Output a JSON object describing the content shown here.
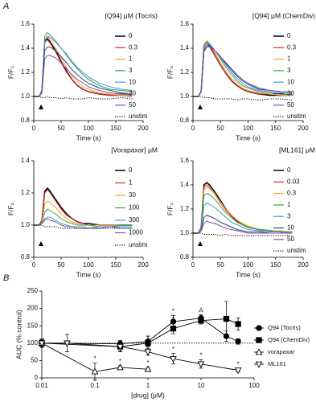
{
  "panels": {
    "a": "A",
    "b": "B"
  },
  "chart_data": [
    {
      "type": "line",
      "title": "[Q94] μM (Tocris)",
      "xlabel": "Time (s)",
      "ylabel": "F/F₀",
      "x": [
        0,
        10,
        15,
        20,
        25,
        30,
        40,
        50,
        60,
        70,
        80,
        90,
        100,
        120,
        140,
        160,
        180
      ],
      "xlim": [
        0,
        200
      ],
      "xticks": [
        0,
        50,
        100,
        150,
        200
      ],
      "ylim": [
        0.8,
        1.6
      ],
      "yticks": [
        0.8,
        {
          "value": 1,
          "label": "1.0"
        },
        1.2,
        1.4,
        1.6
      ],
      "series": [
        {
          "name": "0",
          "color": "#000000",
          "values": [
            1.0,
            1.0,
            1.05,
            1.46,
            1.48,
            1.45,
            1.38,
            1.29,
            1.21,
            1.14,
            1.09,
            1.06,
            1.04,
            1.02,
            1.01,
            1.01,
            1.01
          ]
        },
        {
          "name": "0.3",
          "color": "#e3262b",
          "values": [
            1.0,
            1.0,
            1.05,
            1.45,
            1.47,
            1.44,
            1.37,
            1.28,
            1.2,
            1.14,
            1.09,
            1.06,
            1.04,
            1.02,
            1.01,
            1.01,
            1.0
          ]
        },
        {
          "name": "1",
          "color": "#f5a623",
          "values": [
            1.0,
            1.0,
            1.05,
            1.48,
            1.5,
            1.47,
            1.4,
            1.32,
            1.24,
            1.17,
            1.12,
            1.08,
            1.06,
            1.03,
            1.02,
            1.01,
            1.01
          ]
        },
        {
          "name": "3",
          "color": "#3aa14a",
          "values": [
            1.0,
            1.0,
            1.05,
            1.5,
            1.53,
            1.51,
            1.46,
            1.4,
            1.34,
            1.28,
            1.23,
            1.18,
            1.14,
            1.09,
            1.06,
            1.05,
            1.04
          ]
        },
        {
          "name": "10",
          "color": "#3b9bd6",
          "values": [
            1.0,
            1.0,
            1.04,
            1.46,
            1.5,
            1.49,
            1.45,
            1.4,
            1.35,
            1.29,
            1.24,
            1.2,
            1.16,
            1.11,
            1.08,
            1.06,
            1.05
          ]
        },
        {
          "name": "30",
          "color": "#2b3a8f",
          "values": [
            1.0,
            1.0,
            1.04,
            1.38,
            1.41,
            1.41,
            1.38,
            1.33,
            1.28,
            1.22,
            1.18,
            1.14,
            1.11,
            1.07,
            1.05,
            1.03,
            1.02
          ]
        },
        {
          "name": "50",
          "color": "#8b4fa6",
          "values": [
            1.0,
            1.0,
            1.03,
            1.31,
            1.34,
            1.34,
            1.32,
            1.28,
            1.23,
            1.18,
            1.14,
            1.11,
            1.08,
            1.05,
            1.03,
            1.02,
            1.02
          ]
        },
        {
          "name": "unstim",
          "color": "#000000",
          "dash": "dotted",
          "values": [
            1.0,
            1.0,
            0.99,
            0.99,
            1.0,
            0.99,
            0.99,
            0.98,
            0.99,
            0.98,
            0.98,
            0.98,
            0.99,
            0.98,
            0.98,
            0.99,
            0.98
          ]
        }
      ]
    },
    {
      "type": "line",
      "title": "[Q94] μM (ChemDiv)",
      "xlabel": "Time (s)",
      "ylabel": "F/F₀",
      "x": [
        0,
        10,
        15,
        20,
        25,
        30,
        40,
        50,
        60,
        70,
        80,
        90,
        100,
        120,
        140,
        160,
        180
      ],
      "xlim": [
        0,
        200
      ],
      "xticks": [
        0,
        50,
        100,
        150,
        200
      ],
      "ylim": [
        0.8,
        1.6
      ],
      "yticks": [
        0.8,
        {
          "value": 1,
          "label": "1.0"
        },
        1.2,
        1.4,
        1.6
      ],
      "series": [
        {
          "name": "0",
          "color": "#000000",
          "values": [
            1.0,
            1.0,
            1.05,
            1.42,
            1.45,
            1.42,
            1.34,
            1.26,
            1.19,
            1.13,
            1.09,
            1.06,
            1.04,
            1.02,
            1.01,
            1.01,
            1.01
          ]
        },
        {
          "name": "0.3",
          "color": "#e3262b",
          "values": [
            1.0,
            1.0,
            1.05,
            1.41,
            1.44,
            1.41,
            1.34,
            1.26,
            1.19,
            1.13,
            1.09,
            1.06,
            1.04,
            1.02,
            1.02,
            1.01,
            1.01
          ]
        },
        {
          "name": "1",
          "color": "#f5a623",
          "values": [
            1.0,
            1.0,
            1.05,
            1.42,
            1.45,
            1.43,
            1.36,
            1.28,
            1.21,
            1.15,
            1.11,
            1.07,
            1.05,
            1.03,
            1.02,
            1.01,
            1.01
          ]
        },
        {
          "name": "3",
          "color": "#3aa14a",
          "values": [
            1.0,
            1.0,
            1.05,
            1.43,
            1.46,
            1.44,
            1.38,
            1.31,
            1.24,
            1.18,
            1.13,
            1.09,
            1.07,
            1.04,
            1.03,
            1.02,
            1.02
          ]
        },
        {
          "name": "10",
          "color": "#3b9bd6",
          "values": [
            1.0,
            1.0,
            1.04,
            1.4,
            1.44,
            1.43,
            1.38,
            1.32,
            1.26,
            1.2,
            1.15,
            1.11,
            1.08,
            1.05,
            1.04,
            1.03,
            1.03
          ]
        },
        {
          "name": "30",
          "color": "#2b3a8f",
          "values": [
            1.0,
            1.0,
            1.04,
            1.38,
            1.42,
            1.42,
            1.38,
            1.33,
            1.27,
            1.22,
            1.17,
            1.13,
            1.1,
            1.06,
            1.05,
            1.04,
            1.04
          ]
        },
        {
          "name": "50",
          "color": "#8b4fa6",
          "values": [
            1.0,
            1.0,
            1.04,
            1.37,
            1.41,
            1.41,
            1.38,
            1.33,
            1.28,
            1.23,
            1.18,
            1.14,
            1.11,
            1.07,
            1.05,
            1.04,
            1.04
          ]
        },
        {
          "name": "unstim",
          "color": "#000000",
          "dash": "dotted",
          "values": [
            1.0,
            1.0,
            1.0,
            0.99,
            0.99,
            0.99,
            0.98,
            0.98,
            0.98,
            0.98,
            0.97,
            0.98,
            0.98,
            0.97,
            0.98,
            0.98,
            0.97
          ]
        }
      ]
    },
    {
      "type": "line",
      "title": "[Vorapaxar] μM",
      "xlabel": "Time (s)",
      "ylabel": "F/F₀",
      "x": [
        0,
        10,
        15,
        20,
        25,
        30,
        40,
        50,
        60,
        70,
        80,
        90,
        100,
        120,
        140,
        160,
        180
      ],
      "xlim": [
        0,
        200
      ],
      "xticks": [
        0,
        50,
        100,
        150,
        200
      ],
      "ylim": [
        0.8,
        1.4
      ],
      "yticks": [
        0.8,
        {
          "value": 1,
          "label": "1.0"
        },
        1.2,
        1.4
      ],
      "series": [
        {
          "name": "0",
          "color": "#000000",
          "values": [
            1.0,
            1.0,
            1.03,
            1.21,
            1.23,
            1.21,
            1.16,
            1.11,
            1.07,
            1.04,
            1.02,
            1.01,
            1.01,
            1.0,
            1.0,
            1.0,
            1.0
          ]
        },
        {
          "name": "1",
          "color": "#e3262b",
          "values": [
            1.0,
            1.0,
            1.03,
            1.2,
            1.22,
            1.2,
            1.15,
            1.1,
            1.06,
            1.04,
            1.02,
            1.01,
            1.0,
            1.0,
            1.0,
            1.0,
            1.0
          ]
        },
        {
          "name": "30",
          "color": "#f5a623",
          "values": [
            1.0,
            1.0,
            1.02,
            1.13,
            1.15,
            1.14,
            1.11,
            1.07,
            1.04,
            1.02,
            1.01,
            1.0,
            1.0,
            1.0,
            1.0,
            1.0,
            1.0
          ]
        },
        {
          "name": "100",
          "color": "#3aa14a",
          "values": [
            1.0,
            1.0,
            1.02,
            1.08,
            1.1,
            1.09,
            1.07,
            1.04,
            1.02,
            1.01,
            1.0,
            1.0,
            1.0,
            0.99,
            0.99,
            1.0,
            1.0
          ]
        },
        {
          "name": "300",
          "color": "#3b9bd6",
          "values": [
            1.0,
            1.0,
            1.01,
            1.04,
            1.05,
            1.05,
            1.03,
            1.01,
            1.0,
            0.99,
            0.99,
            0.99,
            0.98,
            0.99,
            0.99,
            0.99,
            0.99
          ]
        },
        {
          "name": "1000",
          "color": "#8b4fa6",
          "values": [
            1.0,
            1.0,
            1.01,
            1.03,
            1.04,
            1.03,
            1.02,
            1.0,
            0.99,
            0.99,
            0.98,
            0.98,
            0.98,
            0.98,
            0.99,
            0.98,
            0.98
          ]
        },
        {
          "name": "unstim",
          "color": "#000000",
          "dash": "dotted",
          "values": [
            1.0,
            1.0,
            1.0,
            0.99,
            0.99,
            0.99,
            0.99,
            0.98,
            0.98,
            0.98,
            0.98,
            0.98,
            0.98,
            0.98,
            0.98,
            0.98,
            0.98
          ]
        }
      ]
    },
    {
      "type": "line",
      "title": "[ML161] μM",
      "xlabel": "Time (s)",
      "ylabel": "F/F₀",
      "x": [
        0,
        10,
        15,
        20,
        25,
        30,
        40,
        50,
        60,
        70,
        80,
        90,
        100,
        120,
        140,
        160,
        180
      ],
      "xlim": [
        0,
        200
      ],
      "xticks": [
        0,
        50,
        100,
        150,
        200
      ],
      "ylim": [
        0.8,
        1.6
      ],
      "yticks": [
        0.8,
        {
          "value": 1,
          "label": "1.0"
        },
        1.2,
        1.4,
        1.6
      ],
      "series": [
        {
          "name": "0",
          "color": "#000000",
          "values": [
            1.0,
            1.0,
            1.05,
            1.4,
            1.42,
            1.4,
            1.34,
            1.27,
            1.2,
            1.14,
            1.1,
            1.07,
            1.05,
            1.03,
            1.02,
            1.01,
            1.01
          ]
        },
        {
          "name": "0.03",
          "color": "#e3262b",
          "values": [
            1.0,
            1.0,
            1.05,
            1.38,
            1.4,
            1.38,
            1.32,
            1.25,
            1.19,
            1.14,
            1.1,
            1.07,
            1.05,
            1.03,
            1.02,
            1.01,
            1.01
          ]
        },
        {
          "name": "0.3",
          "color": "#f5a623",
          "values": [
            1.0,
            1.0,
            1.04,
            1.36,
            1.38,
            1.37,
            1.32,
            1.26,
            1.2,
            1.15,
            1.11,
            1.08,
            1.06,
            1.03,
            1.02,
            1.02,
            1.01
          ]
        },
        {
          "name": "1",
          "color": "#3aa14a",
          "values": [
            1.0,
            1.0,
            1.04,
            1.31,
            1.33,
            1.32,
            1.28,
            1.22,
            1.17,
            1.13,
            1.09,
            1.07,
            1.05,
            1.03,
            1.02,
            1.01,
            1.01
          ]
        },
        {
          "name": "3",
          "color": "#3b9bd6",
          "values": [
            1.0,
            1.0,
            1.03,
            1.23,
            1.25,
            1.24,
            1.21,
            1.17,
            1.13,
            1.09,
            1.07,
            1.05,
            1.03,
            1.02,
            1.01,
            1.01,
            1.01
          ]
        },
        {
          "name": "10",
          "color": "#2b3a8f",
          "values": [
            1.0,
            1.0,
            1.02,
            1.13,
            1.15,
            1.14,
            1.12,
            1.09,
            1.07,
            1.05,
            1.03,
            1.02,
            1.01,
            1.01,
            1.0,
            1.0,
            1.0
          ]
        },
        {
          "name": "50",
          "color": "#8b4fa6",
          "values": [
            1.0,
            1.0,
            1.02,
            1.08,
            1.1,
            1.09,
            1.08,
            1.06,
            1.04,
            1.03,
            1.02,
            1.01,
            1.0,
            1.0,
            1.0,
            1.0,
            1.0
          ]
        },
        {
          "name": "unstim",
          "color": "#000000",
          "dash": "dotted",
          "values": [
            1.0,
            1.0,
            1.0,
            0.99,
            0.99,
            0.99,
            0.99,
            0.98,
            0.99,
            0.98,
            0.98,
            0.98,
            0.98,
            0.98,
            0.98,
            0.98,
            0.98
          ]
        }
      ]
    },
    {
      "type": "line",
      "xlabel": "[drug] (μM)",
      "ylabel": "AUC (% control)",
      "xscale": "log",
      "xlim": [
        0.01,
        100
      ],
      "xticks": [
        0.01,
        0.1,
        1,
        10,
        100
      ],
      "ylim": [
        0,
        250
      ],
      "yticks": [
        0,
        50,
        100,
        150,
        200,
        250
      ],
      "reference_line": 100,
      "series": [
        {
          "name": "Q94 (Tocris)",
          "color": "#000000",
          "marker": "circle",
          "filled": true,
          "x": [
            0.01,
            0.3,
            1,
            3,
            10,
            30,
            50
          ],
          "values": [
            100,
            98,
            105,
            162,
            172,
            120,
            105
          ],
          "errors": [
            8,
            10,
            15,
            18,
            10,
            15,
            8
          ],
          "significance": [
            null,
            null,
            null,
            "*",
            "*",
            null,
            null
          ]
        },
        {
          "name": "Q94 (ChemDiv)",
          "color": "#000000",
          "marker": "square",
          "filled": true,
          "x": [
            0.01,
            0.3,
            1,
            3,
            10,
            30,
            50
          ],
          "values": [
            100,
            90,
            100,
            142,
            165,
            170,
            155
          ],
          "errors": [
            12,
            12,
            20,
            15,
            10,
            50,
            18
          ],
          "significance": [
            null,
            null,
            null,
            "*",
            "**",
            null,
            null
          ]
        },
        {
          "name": "vorapaxar",
          "color": "#000000",
          "marker": "triangle-up",
          "filled": false,
          "x": [
            0.01,
            0.1,
            0.3,
            1
          ],
          "values": [
            100,
            18,
            30,
            25
          ],
          "errors": [
            10,
            25,
            5,
            5
          ],
          "significance": [
            null,
            "*",
            "*",
            "*"
          ]
        },
        {
          "name": "ML161",
          "color": "#000000",
          "marker": "triangle-down",
          "filled": false,
          "x": [
            0.01,
            0.03,
            0.3,
            1,
            3,
            10,
            50
          ],
          "values": [
            100,
            100,
            90,
            75,
            55,
            40,
            22
          ],
          "errors": [
            10,
            25,
            15,
            10,
            15,
            12,
            5
          ],
          "significance": [
            null,
            null,
            null,
            "*",
            "*",
            "*",
            "*"
          ]
        }
      ]
    }
  ]
}
